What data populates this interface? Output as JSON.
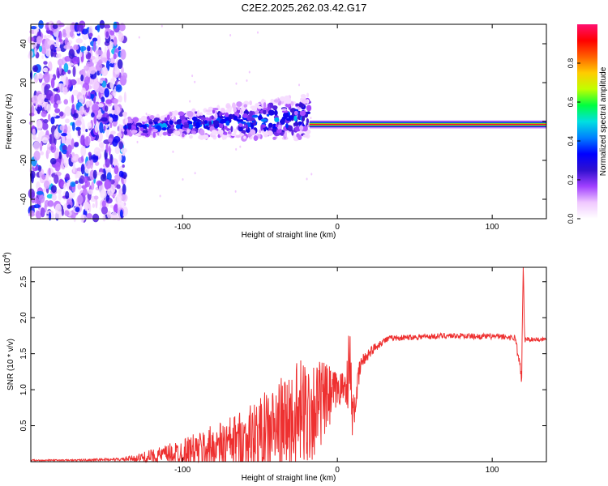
{
  "title": "C2E2.2025.262.03.42.G17",
  "chart_data": [
    {
      "type": "heatmap",
      "name": "spectrogram",
      "xlabel": "Height of straight line (km)",
      "ylabel": "Frequency (Hz)",
      "xlim": [
        -198,
        135
      ],
      "ylim": [
        -50,
        50
      ],
      "xticks": [
        -100,
        0,
        100
      ],
      "yticks": [
        -40,
        -20,
        0,
        20,
        40
      ],
      "colorbar": {
        "label": "Normalized spectral amplitude",
        "range": [
          0,
          1
        ],
        "ticks": [
          "0.0",
          "0.2",
          "0.4",
          "0.6",
          "0.8"
        ],
        "colors": [
          "#ffffff",
          "#f0c8ff",
          "#a040ff",
          "#3010d0",
          "#0000ff",
          "#0080ff",
          "#00e0e0",
          "#00ff40",
          "#c0ff00",
          "#ffcc00",
          "#ff6000",
          "#ff0000",
          "#ff1070"
        ]
      },
      "regions": [
        {
          "label": "noise",
          "x": [
            -198,
            -137
          ],
          "freq": [
            -50,
            50
          ],
          "amplitude": 0.12
        },
        {
          "label": "rising-trace",
          "x": [
            -137,
            -18
          ],
          "freq_start": -3,
          "freq_end": 2,
          "amplitude": 0.35
        },
        {
          "label": "stable-trace",
          "x": [
            -18,
            135
          ],
          "freq": -1.5,
          "amplitude": 0.95
        }
      ]
    },
    {
      "type": "line",
      "name": "snr",
      "xlabel": "Height of straight line (km)",
      "ylabel": "SNR (10 * v/v)",
      "scale_label": "(x10",
      "scale_exp": "4",
      "xlim": [
        -198,
        135
      ],
      "ylim": [
        0,
        2.7
      ],
      "xticks": [
        -100,
        0,
        100
      ],
      "yticks": [
        "0.5",
        "1.0",
        "1.5",
        "2.0",
        "2.5"
      ],
      "series": [
        {
          "name": "SNR",
          "color": "#ee3030",
          "x": [
            -198,
            -170,
            -150,
            -140,
            -130,
            -120,
            -110,
            -100,
            -90,
            -80,
            -70,
            -60,
            -50,
            -40,
            -30,
            -20,
            -15,
            -10,
            -5,
            0,
            5,
            8,
            10,
            15,
            20,
            25,
            30,
            35,
            40,
            50,
            60,
            70,
            80,
            90,
            100,
            110,
            115,
            118,
            119,
            120,
            121,
            125,
            135
          ],
          "y": [
            0.02,
            0.02,
            0.03,
            0.03,
            0.05,
            0.07,
            0.1,
            0.13,
            0.16,
            0.2,
            0.24,
            0.3,
            0.36,
            0.45,
            0.55,
            0.7,
            0.75,
            0.82,
            0.88,
            1.0,
            1.05,
            1.3,
            0.6,
            1.35,
            1.5,
            1.6,
            1.68,
            1.72,
            1.72,
            1.73,
            1.74,
            1.75,
            1.75,
            1.74,
            1.74,
            1.73,
            1.72,
            1.3,
            1.15,
            2.7,
            1.7,
            1.7,
            1.7
          ],
          "spread": [
            0.01,
            0.01,
            0.02,
            0.02,
            0.05,
            0.1,
            0.14,
            0.2,
            0.25,
            0.32,
            0.38,
            0.45,
            0.55,
            0.65,
            0.75,
            0.8,
            0.7,
            0.6,
            0.45,
            0.25,
            0.2,
            0.7,
            0.3,
            0.12,
            0.08,
            0.06,
            0.05,
            0.04,
            0.04,
            0.04,
            0.04,
            0.04,
            0.04,
            0.04,
            0.04,
            0.04,
            0.05,
            0.1,
            0.1,
            0.2,
            0.05,
            0.03,
            0.03
          ]
        }
      ]
    }
  ]
}
